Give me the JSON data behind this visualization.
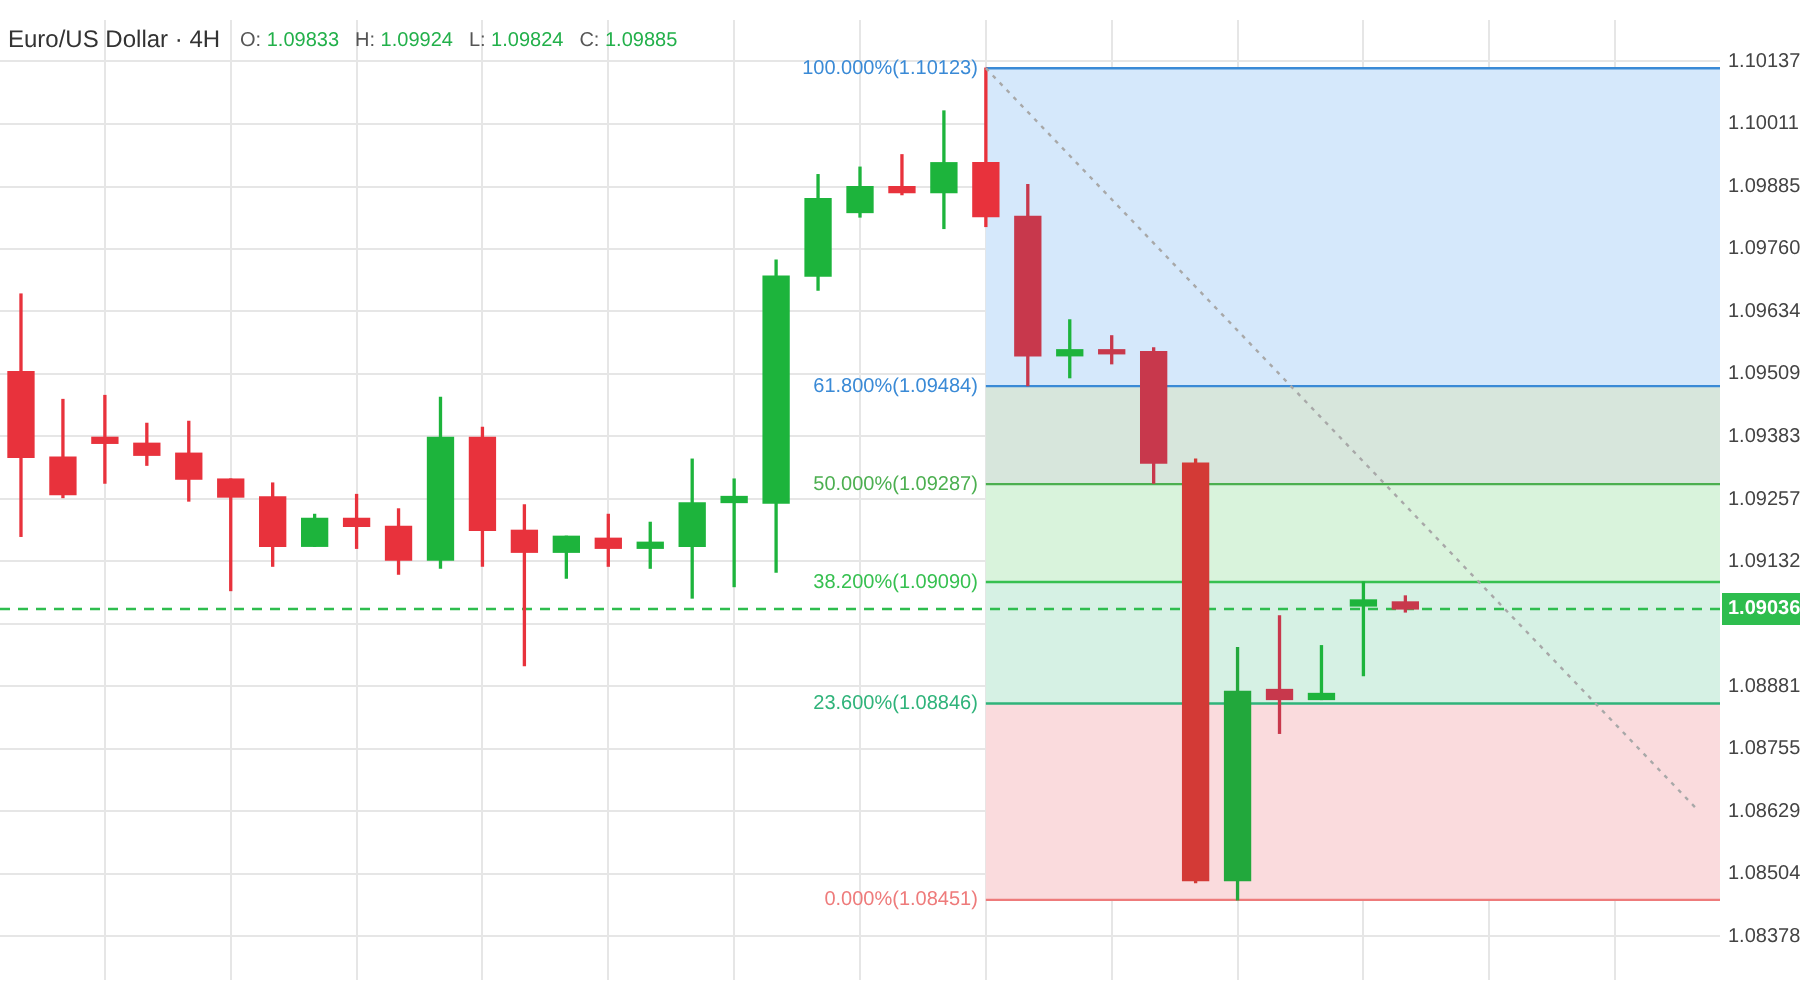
{
  "chart_data": {
    "type": "candlestick",
    "title": "Euro/US Dollar · 4H",
    "annotations": [
      "O: 1.09833",
      "H: 1.09924",
      "L: 1.09824",
      "C: 1.09885"
    ],
    "categories": [
      null,
      null,
      null,
      null,
      null,
      null,
      null,
      null,
      null,
      null,
      null,
      null,
      null,
      null,
      null,
      null,
      null,
      null,
      null,
      null,
      null,
      null,
      null,
      null,
      null,
      null,
      null,
      null,
      null,
      null,
      null,
      null,
      null,
      null,
      null,
      null,
      null,
      null,
      null,
      null,
      null
    ],
    "ohlc": [
      [
        1.09513,
        1.09669,
        1.09182,
        1.09341
      ],
      [
        1.09341,
        1.09457,
        1.0926,
        1.09266
      ],
      [
        1.09381,
        1.09465,
        1.09289,
        1.09369
      ],
      [
        1.09369,
        1.09409,
        1.09325,
        1.09345
      ],
      [
        1.09349,
        1.09413,
        1.09253,
        1.09297
      ],
      [
        1.09297,
        1.09297,
        1.09073,
        1.09261
      ],
      [
        1.09261,
        1.09289,
        1.09122,
        1.09162
      ],
      [
        1.09162,
        1.09226,
        1.09162,
        1.09218
      ],
      [
        1.09218,
        1.09266,
        1.09158,
        1.09202
      ],
      [
        1.09202,
        1.09237,
        1.09106,
        1.09134
      ],
      [
        1.09134,
        1.09461,
        1.09118,
        1.09381
      ],
      [
        1.09381,
        1.09401,
        1.09122,
        1.09194
      ],
      [
        1.09194,
        1.09245,
        1.08922,
        1.0915
      ],
      [
        1.0915,
        1.09182,
        1.09098,
        1.09182
      ],
      [
        1.09178,
        1.09226,
        1.09122,
        1.09158
      ],
      [
        1.09158,
        1.0921,
        1.09118,
        1.0917
      ],
      [
        1.09162,
        1.09337,
        1.09058,
        1.09249
      ],
      [
        1.0925,
        1.09297,
        1.09081,
        1.09262
      ],
      [
        1.09249,
        1.09737,
        1.0911,
        1.09705
      ],
      [
        1.09705,
        1.09909,
        1.09677,
        1.09861
      ],
      [
        1.09833,
        1.09924,
        1.09824,
        1.09885
      ],
      [
        1.09885,
        1.09949,
        1.09869,
        1.09873
      ],
      [
        1.09873,
        1.10037,
        1.09801,
        1.09933
      ],
      [
        1.09933,
        1.10123,
        1.09805,
        1.09825
      ],
      [
        1.09825,
        1.09889,
        1.09485,
        1.09545
      ],
      [
        1.09545,
        1.09617,
        1.09501,
        1.09557
      ],
      [
        1.09557,
        1.09585,
        1.09529,
        1.09549
      ],
      [
        1.09553,
        1.09561,
        1.09289,
        1.09329
      ],
      [
        1.09329,
        1.09337,
        1.08486,
        1.0849
      ],
      [
        1.0849,
        1.08958,
        1.08451,
        1.0887
      ],
      [
        1.08874,
        1.09022,
        1.08786,
        1.08854
      ],
      [
        1.08854,
        1.08962,
        1.08854,
        1.08866
      ],
      [
        1.09042,
        1.0909,
        1.08902,
        1.09054
      ],
      [
        1.0905,
        1.09062,
        1.0903,
        1.09036
      ],
      null,
      null,
      null,
      null,
      null,
      null,
      null
    ],
    "colors": [
      "#e8323c",
      "#e8323c",
      "#e8323c",
      "#e8323c",
      "#e8323c",
      "#e8323c",
      "#e8323c",
      "#1db43c",
      "#e8323c",
      "#e8323c",
      "#1db43c",
      "#e8323c",
      "#e8323c",
      "#1db43c",
      "#e8323c",
      "#1db43c",
      "#1db43c",
      "#1db43c",
      "#1db43c",
      "#1db43c",
      "#1db43c",
      "#e8323c",
      "#1db43c",
      "#e8323c",
      "#c8384c",
      "#1db43c",
      "#c8384c",
      "#c8384c",
      "#d33a36",
      "#22a83c",
      "#c8384c",
      "#1db43c",
      "#1db43c",
      "#c8384c",
      null,
      null,
      null,
      null,
      null,
      null,
      null
    ],
    "series": [
      {
        "type": "line",
        "color": "#a8a8a8",
        "line_style": "dotted",
        "marker": "none",
        "values": [
          null,
          null,
          null,
          null,
          null,
          null,
          null,
          null,
          null,
          null,
          null,
          null,
          null,
          null,
          null,
          null,
          null,
          null,
          null,
          null,
          null,
          null,
          null,
          1.10123,
          null,
          null,
          null,
          null,
          null,
          null,
          null,
          null,
          null,
          null,
          null,
          null,
          null,
          null,
          null,
          null,
          1.08629
        ]
      }
    ],
    "ylim": [
      1.0829,
      1.1022
    ],
    "yticks": [
      1.10137,
      1.10011,
      1.09885,
      {
        "value": 1.0976,
        "label": "1.09760"
      },
      1.09634,
      1.09509,
      1.09383,
      1.09257,
      1.09132,
      {
        "value": 1.09006,
        "label": null
      },
      1.08881,
      1.08755,
      1.08629,
      1.08504,
      1.08378
    ],
    "bands": [
      {
        "axis": "y",
        "from": 1.09484,
        "to": 1.10123,
        "color": "#d5e8fb"
      },
      {
        "axis": "y",
        "from": 1.09287,
        "to": 1.09484,
        "color": "#d7e6dc"
      },
      {
        "axis": "y",
        "from": 1.0909,
        "to": 1.09287,
        "color": "#d9f3dc"
      },
      {
        "axis": "y",
        "from": 1.08846,
        "to": 1.0909,
        "color": "#d6f1e4"
      },
      {
        "axis": "y",
        "from": 1.08451,
        "to": 1.08846,
        "color": "#fadbdd"
      }
    ],
    "ref_lines": [
      {
        "axis": "y",
        "value": 1.10123,
        "label": "100.000%(1.10123)",
        "color": "#3a8ad6"
      },
      {
        "axis": "y",
        "value": 1.09484,
        "label": "61.800%(1.09484)",
        "color": "#3a8ad6"
      },
      {
        "axis": "y",
        "value": 1.09287,
        "label": "50.000%(1.09287)",
        "color": "#4caf50"
      },
      {
        "axis": "y",
        "value": 1.0909,
        "label": "38.200%(1.09090)",
        "color": "#36c050"
      },
      {
        "axis": "y",
        "value": 1.08846,
        "label": "23.600%(1.08846)",
        "color": "#2fb37a"
      },
      {
        "axis": "y",
        "value": 1.08451,
        "label": "0.000%(1.08451)",
        "color": "#ee7b7b"
      },
      {
        "axis": "y",
        "value": 1.09036,
        "label": "1.09036",
        "color": "#2ebd4e",
        "line_style": "dashed"
      }
    ],
    "grid": true,
    "legend": false
  }
}
